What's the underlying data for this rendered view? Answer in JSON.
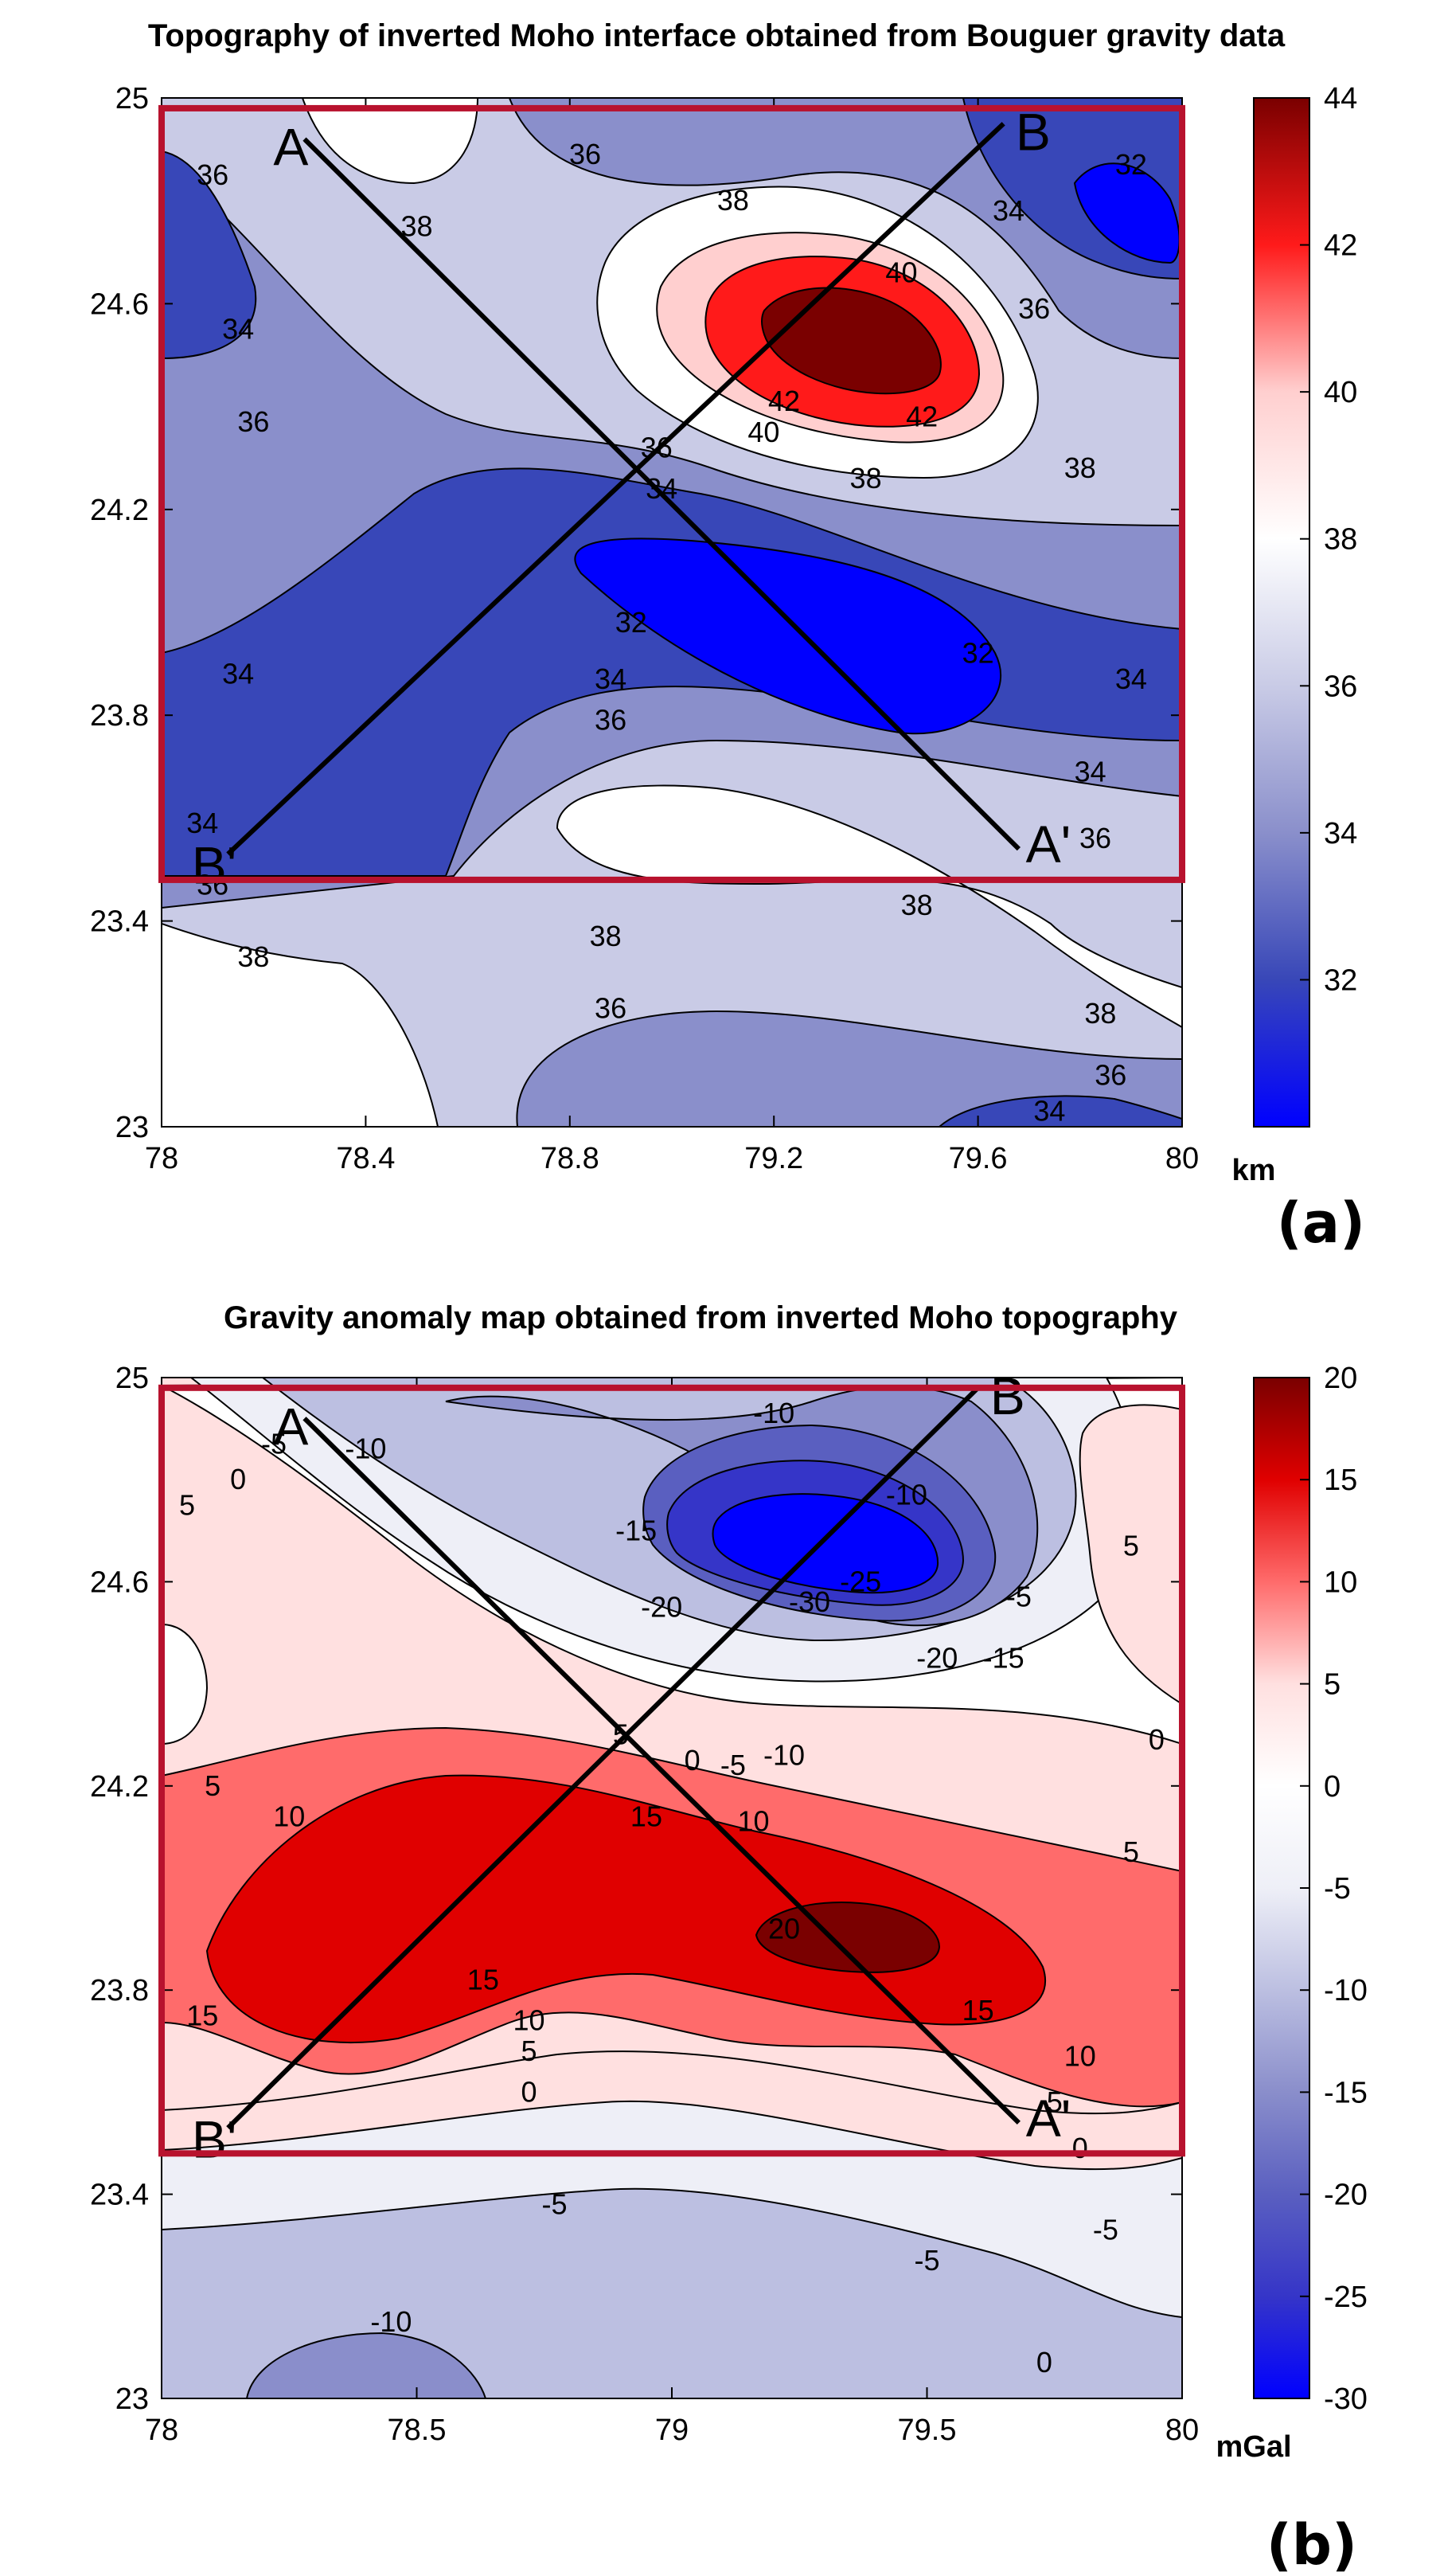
{
  "chart_data": [
    {
      "type": "heatmap",
      "subtype": "filled-contour-map",
      "title": "Topography of inverted Moho interface obtained from Bouguer gravity data",
      "panel_label": "(a)",
      "xlabel": "",
      "ylabel": "",
      "xlim": [
        78,
        80
      ],
      "ylim": [
        23,
        25
      ],
      "x_ticks": [
        "78",
        "78.4",
        "78.8",
        "79.2",
        "79.6",
        "80"
      ],
      "y_ticks": [
        "23",
        "23.4",
        "23.8",
        "24.2",
        "24.6",
        "25"
      ],
      "colorbar": {
        "label": "km",
        "range": [
          30,
          44
        ],
        "ticks": [
          "32",
          "34",
          "36",
          "38",
          "40",
          "42",
          "44"
        ],
        "colors": [
          "#0000ff",
          "#3847b8",
          "#8a8fcb",
          "#c9cbe6",
          "#ffffff",
          "#ffcfcf",
          "#ff1a1a",
          "#7a0000"
        ]
      },
      "contour_labels": [
        {
          "text": "36",
          "x": 78.1,
          "y": 24.85
        },
        {
          "text": "38",
          "x": 78.5,
          "y": 24.75
        },
        {
          "text": "36",
          "x": 78.83,
          "y": 24.89
        },
        {
          "text": "38",
          "x": 79.12,
          "y": 24.8
        },
        {
          "text": "40",
          "x": 79.45,
          "y": 24.66
        },
        {
          "text": "34",
          "x": 79.66,
          "y": 24.78
        },
        {
          "text": "36",
          "x": 79.71,
          "y": 24.59
        },
        {
          "text": "32",
          "x": 79.9,
          "y": 24.87
        },
        {
          "text": "34",
          "x": 78.15,
          "y": 24.55
        },
        {
          "text": "36",
          "x": 78.18,
          "y": 24.37
        },
        {
          "text": "42",
          "x": 79.22,
          "y": 24.41
        },
        {
          "text": "40",
          "x": 79.18,
          "y": 24.35
        },
        {
          "text": "42",
          "x": 79.49,
          "y": 24.38
        },
        {
          "text": "38",
          "x": 79.38,
          "y": 24.26
        },
        {
          "text": "38",
          "x": 79.8,
          "y": 24.28
        },
        {
          "text": "36",
          "x": 78.97,
          "y": 24.32
        },
        {
          "text": "34",
          "x": 78.98,
          "y": 24.24
        },
        {
          "text": "32",
          "x": 78.92,
          "y": 23.98
        },
        {
          "text": "32",
          "x": 79.6,
          "y": 23.92
        },
        {
          "text": "34",
          "x": 78.15,
          "y": 23.88
        },
        {
          "text": "34",
          "x": 78.88,
          "y": 23.87
        },
        {
          "text": "34",
          "x": 79.9,
          "y": 23.87
        },
        {
          "text": "36",
          "x": 78.88,
          "y": 23.79
        },
        {
          "text": "34",
          "x": 79.82,
          "y": 23.69
        },
        {
          "text": "34",
          "x": 78.08,
          "y": 23.59
        },
        {
          "text": "36",
          "x": 79.83,
          "y": 23.56
        },
        {
          "text": "36",
          "x": 78.1,
          "y": 23.47
        },
        {
          "text": "38",
          "x": 79.48,
          "y": 23.43
        },
        {
          "text": "38",
          "x": 78.87,
          "y": 23.37
        },
        {
          "text": "38",
          "x": 78.18,
          "y": 23.33
        },
        {
          "text": "36",
          "x": 78.88,
          "y": 23.23
        },
        {
          "text": "38",
          "x": 79.84,
          "y": 23.22
        },
        {
          "text": "36",
          "x": 79.86,
          "y": 23.1
        },
        {
          "text": "34",
          "x": 79.74,
          "y": 23.03
        }
      ],
      "profiles": [
        {
          "label_start": "A",
          "label_end": "A'",
          "start": [
            78.28,
            24.92
          ],
          "end": [
            79.68,
            23.54
          ]
        },
        {
          "label_start": "B'",
          "label_end": "B",
          "start": [
            78.13,
            23.53
          ],
          "end": [
            79.65,
            24.95
          ]
        }
      ],
      "highlight_box": {
        "xlim": [
          78,
          80
        ],
        "ylim": [
          23.48,
          24.98
        ],
        "color": "#b8122e"
      }
    },
    {
      "type": "heatmap",
      "subtype": "filled-contour-map",
      "title": "Gravity anomaly map obtained from inverted Moho topography",
      "panel_label": "(b)",
      "xlabel": "",
      "ylabel": "",
      "xlim": [
        78,
        80
      ],
      "ylim": [
        23,
        25
      ],
      "x_ticks": [
        "78",
        "78.5",
        "79",
        "79.5",
        "80"
      ],
      "y_ticks": [
        "23",
        "23.4",
        "23.8",
        "24.2",
        "24.6",
        "25"
      ],
      "colorbar": {
        "label": "mGal",
        "range": [
          -30,
          20
        ],
        "ticks": [
          "-30",
          "-25",
          "-20",
          "-15",
          "-10",
          "-5",
          "0",
          "5",
          "10",
          "15",
          "20"
        ],
        "colors": [
          "#0000ff",
          "#3535c8",
          "#5a5fc0",
          "#8a8ecb",
          "#bcbfe1",
          "#eeeff7",
          "#ffffff",
          "#ffe0e0",
          "#ff6b6b",
          "#e00000",
          "#7a0000"
        ]
      },
      "contour_labels": [
        {
          "text": "-10",
          "x": 78.4,
          "y": 24.86
        },
        {
          "text": "-10",
          "x": 79.2,
          "y": 24.93
        },
        {
          "text": "-5",
          "x": 78.22,
          "y": 24.87
        },
        {
          "text": "0",
          "x": 78.15,
          "y": 24.8
        },
        {
          "text": "5",
          "x": 78.05,
          "y": 24.75
        },
        {
          "text": "-15",
          "x": 78.93,
          "y": 24.7
        },
        {
          "text": "-10",
          "x": 79.46,
          "y": 24.77
        },
        {
          "text": "-25",
          "x": 79.37,
          "y": 24.6
        },
        {
          "text": "-30",
          "x": 79.27,
          "y": 24.56
        },
        {
          "text": "-20",
          "x": 78.98,
          "y": 24.55
        },
        {
          "text": "-20",
          "x": 79.52,
          "y": 24.45
        },
        {
          "text": "-15",
          "x": 79.65,
          "y": 24.45
        },
        {
          "text": "-5",
          "x": 79.68,
          "y": 24.57
        },
        {
          "text": "5",
          "x": 79.9,
          "y": 24.67
        },
        {
          "text": "0",
          "x": 79.95,
          "y": 24.29
        },
        {
          "text": "5",
          "x": 78.9,
          "y": 24.3
        },
        {
          "text": "0",
          "x": 79.04,
          "y": 24.25
        },
        {
          "text": "-5",
          "x": 79.12,
          "y": 24.24
        },
        {
          "text": "-10",
          "x": 79.22,
          "y": 24.26
        },
        {
          "text": "5",
          "x": 78.1,
          "y": 24.2
        },
        {
          "text": "10",
          "x": 78.25,
          "y": 24.14
        },
        {
          "text": "15",
          "x": 78.95,
          "y": 24.14
        },
        {
          "text": "10",
          "x": 79.16,
          "y": 24.13
        },
        {
          "text": "5",
          "x": 79.9,
          "y": 24.07
        },
        {
          "text": "20",
          "x": 79.22,
          "y": 23.92
        },
        {
          "text": "15",
          "x": 78.63,
          "y": 23.82
        },
        {
          "text": "15",
          "x": 79.6,
          "y": 23.76
        },
        {
          "text": "15",
          "x": 78.08,
          "y": 23.75
        },
        {
          "text": "10",
          "x": 78.72,
          "y": 23.74
        },
        {
          "text": "5",
          "x": 78.72,
          "y": 23.68
        },
        {
          "text": "0",
          "x": 78.72,
          "y": 23.6
        },
        {
          "text": "10",
          "x": 79.8,
          "y": 23.67
        },
        {
          "text": "5",
          "x": 79.75,
          "y": 23.58
        },
        {
          "text": "0",
          "x": 79.8,
          "y": 23.49
        },
        {
          "text": "-5",
          "x": 78.77,
          "y": 23.38
        },
        {
          "text": "-5",
          "x": 79.85,
          "y": 23.33
        },
        {
          "text": "-5",
          "x": 79.5,
          "y": 23.27
        },
        {
          "text": "-10",
          "x": 78.45,
          "y": 23.15
        },
        {
          "text": "0",
          "x": 79.73,
          "y": 23.07
        }
      ],
      "profiles": [
        {
          "label_start": "A",
          "label_end": "A'",
          "start": [
            78.28,
            24.92
          ],
          "end": [
            79.68,
            23.54
          ]
        },
        {
          "label_start": "B'",
          "label_end": "B",
          "start": [
            78.13,
            23.53
          ],
          "end": [
            79.6,
            24.98
          ]
        }
      ],
      "highlight_box": {
        "xlim": [
          78,
          80
        ],
        "ylim": [
          23.48,
          24.98
        ],
        "color": "#b8122e"
      }
    }
  ]
}
